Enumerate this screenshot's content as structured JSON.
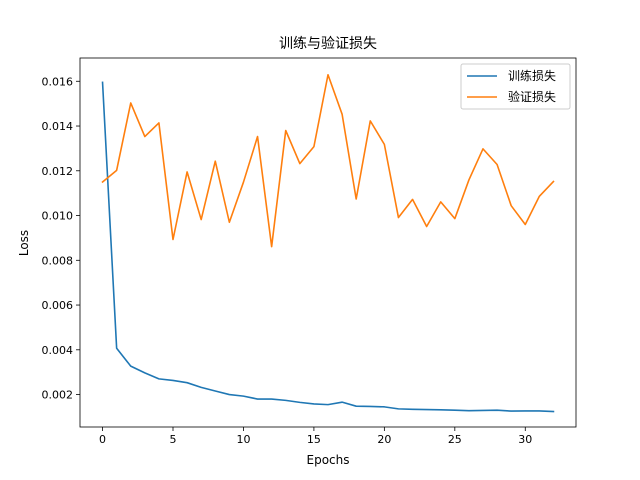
{
  "chart_data": {
    "type": "line",
    "title": "训练与验证损失",
    "xlabel": "Epochs",
    "ylabel": "Loss",
    "xlim": [
      -1.6,
      33.6
    ],
    "ylim": [
      0.00055,
      0.01704
    ],
    "xticks": [
      0,
      5,
      10,
      15,
      20,
      25,
      30
    ],
    "yticks": [
      0.002,
      0.004,
      0.006,
      0.008,
      0.01,
      0.012,
      0.014,
      0.016
    ],
    "ytick_labels": [
      "0.002",
      "0.004",
      "0.006",
      "0.008",
      "0.010",
      "0.012",
      "0.014",
      "0.016"
    ],
    "grid": false,
    "legend_position": "top-right",
    "x": [
      0,
      1,
      2,
      3,
      4,
      5,
      6,
      7,
      8,
      9,
      10,
      11,
      12,
      13,
      14,
      15,
      16,
      17,
      18,
      19,
      20,
      21,
      22,
      23,
      24,
      25,
      26,
      27,
      28,
      29,
      30,
      31,
      32
    ],
    "series": [
      {
        "name": "训练损失",
        "color": "#1f77b4",
        "values": [
          0.01595,
          0.00407,
          0.00327,
          0.00297,
          0.0027,
          0.00263,
          0.00253,
          0.00232,
          0.00216,
          0.002,
          0.00193,
          0.0018,
          0.0018,
          0.00174,
          0.00165,
          0.00158,
          0.00155,
          0.00166,
          0.00148,
          0.00147,
          0.00145,
          0.00136,
          0.00134,
          0.00133,
          0.00132,
          0.0013,
          0.00128,
          0.00129,
          0.0013,
          0.00126,
          0.00127,
          0.00127,
          0.00124
        ]
      },
      {
        "name": "验证损失",
        "color": "#ff7f0e",
        "values": [
          0.0115,
          0.01202,
          0.01503,
          0.01353,
          0.01414,
          0.00893,
          0.01195,
          0.00982,
          0.01243,
          0.0097,
          0.01149,
          0.01353,
          0.00861,
          0.0138,
          0.01232,
          0.01308,
          0.01629,
          0.01453,
          0.01074,
          0.01423,
          0.01318,
          0.00991,
          0.01072,
          0.00951,
          0.01061,
          0.00986,
          0.01159,
          0.01298,
          0.01228,
          0.01044,
          0.0096,
          0.01086,
          0.01152
        ]
      }
    ]
  }
}
